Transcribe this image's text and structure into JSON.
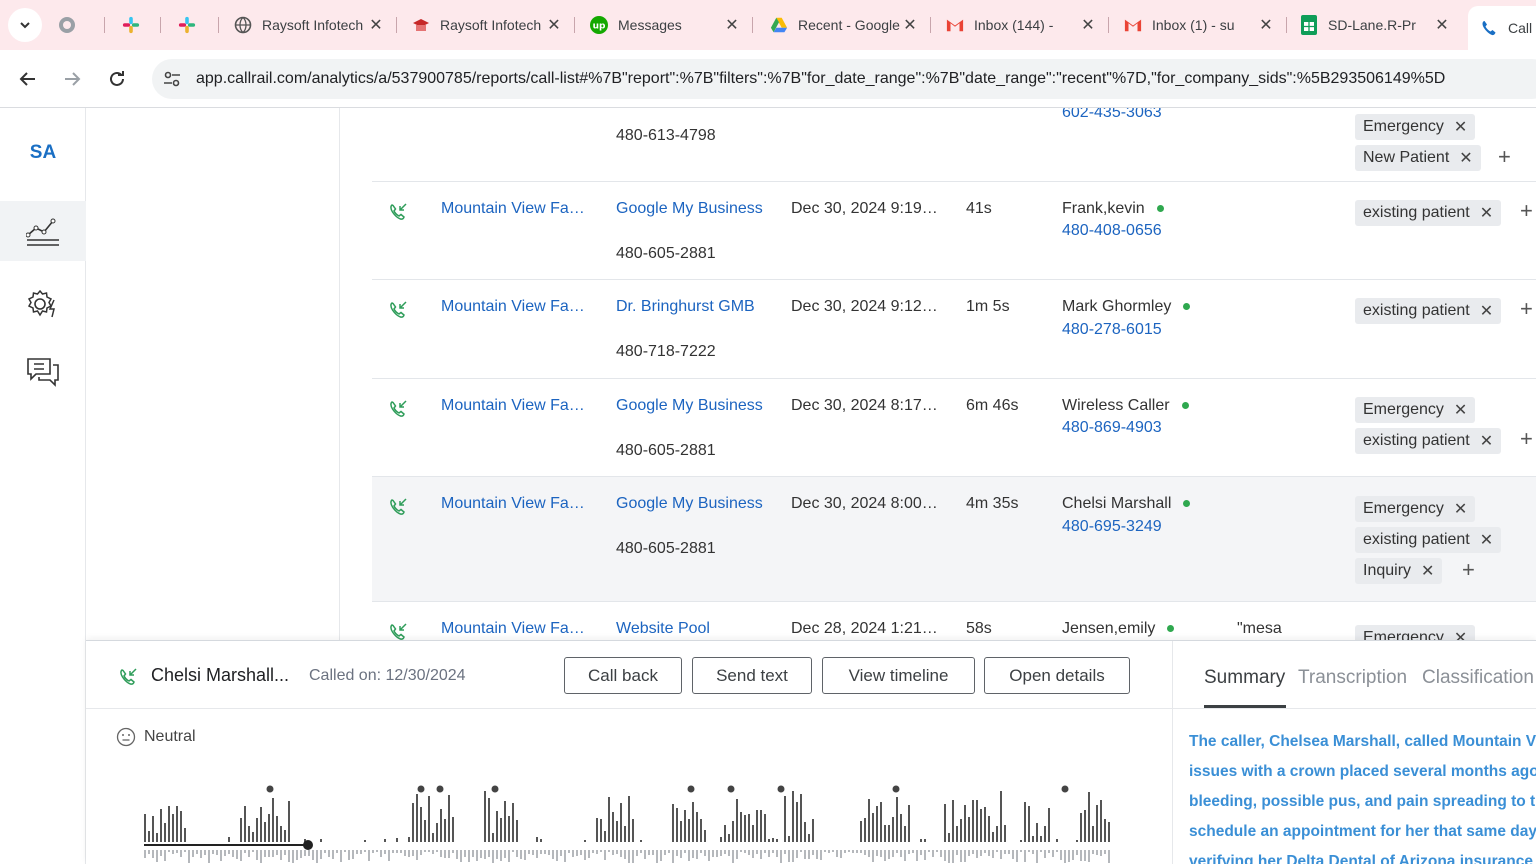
{
  "browser": {
    "tabs": [
      {
        "title": "",
        "icon": "globe-icon"
      },
      {
        "title": "",
        "icon": "slack-icon"
      },
      {
        "title": "",
        "icon": "slack-icon"
      },
      {
        "title": "Raysoft Infotech",
        "icon": "globe-icon"
      },
      {
        "title": "Raysoft Infotech",
        "icon": "school-icon"
      },
      {
        "title": "Messages",
        "icon": "upwork-icon"
      },
      {
        "title": "Recent - Google Drive",
        "icon": "drive-icon"
      },
      {
        "title": "Inbox (144) - ",
        "icon": "gmail-icon"
      },
      {
        "title": "Inbox (1) - su",
        "icon": "gmail-icon"
      },
      {
        "title": "SD-Lane.R-Pr",
        "icon": "sheets-icon"
      },
      {
        "title": "Call",
        "icon": "callrail-icon"
      }
    ],
    "url": "app.callrail.com/analytics/a/537900785/reports/call-list#%7B\"report\":%7B\"filters\":%7B\"for_date_range\":%7B\"date_range\":\"recent\"%7D,\"for_company_sids\":%5B293506149%5D"
  },
  "rail": {
    "logo": "SA",
    "items": [
      "analytics-icon",
      "settings-icon",
      "conversations-icon"
    ]
  },
  "top_partial": {
    "tracking_number": "480-613-4798",
    "caller_number_partial": "602-435-3063",
    "tags": [
      "Emergency",
      "New Patient"
    ]
  },
  "calls": [
    {
      "company": "Mountain View Fa…",
      "source": "Google My Business",
      "tracking": "480-605-2881",
      "time": "Dec 30, 2024 9:19…",
      "duration": "41s",
      "caller": "Frank,kevin",
      "caller_phone": "480-408-0656",
      "keyword": "",
      "tags": [
        "existing patient"
      ]
    },
    {
      "company": "Mountain View Fa…",
      "source": "Dr. Bringhurst GMB",
      "tracking": "480-718-7222",
      "time": "Dec 30, 2024 9:12…",
      "duration": "1m 5s",
      "caller": "Mark Ghormley",
      "caller_phone": "480-278-6015",
      "keyword": "",
      "tags": [
        "existing patient"
      ]
    },
    {
      "company": "Mountain View Fa…",
      "source": "Google My Business",
      "tracking": "480-605-2881",
      "time": "Dec 30, 2024 8:17…",
      "duration": "6m 46s",
      "caller": "Wireless Caller",
      "caller_phone": "480-869-4903",
      "keyword": "",
      "tags": [
        "Emergency",
        "existing patient"
      ]
    },
    {
      "company": "Mountain View Fa…",
      "source": "Google My Business",
      "tracking": "480-605-2881",
      "time": "Dec 30, 2024 8:00…",
      "duration": "4m 35s",
      "caller": "Chelsi Marshall",
      "caller_phone": "480-695-3249",
      "keyword": "",
      "tags": [
        "Emergency",
        "existing patient",
        "Inquiry"
      ]
    },
    {
      "company": "Mountain View Fa…",
      "source": "Website Pool",
      "tracking": "",
      "time": "Dec 28, 2024 1:21…",
      "duration": "58s",
      "caller": "Jensen,emily",
      "caller_phone": "",
      "keyword": "\"mesa",
      "tags": [
        "Emergency"
      ]
    }
  ],
  "panel": {
    "name": "Chelsi Marshall...",
    "called_label": "Called on:",
    "called_date": "12/30/2024",
    "buttons": [
      "Call back",
      "Send text",
      "View timeline",
      "Open details"
    ],
    "sentiment": "Neutral",
    "tabs": [
      "Summary",
      "Transcription",
      "Classification"
    ],
    "summary_lines": [
      "The caller, Chelsea Marshall, called Mountain View",
      "issues with a crown placed several months ago",
      "bleeding, possible pus, and pain spreading to the",
      "schedule an appointment for her that same day",
      "verifying her Delta Dental of Arizona insurance"
    ]
  },
  "colors": {
    "accent": "#1c64c0",
    "tab_strip": "#fde9ec",
    "online_dot": "#2fa84f",
    "summary_text": "#3a8fd6"
  }
}
